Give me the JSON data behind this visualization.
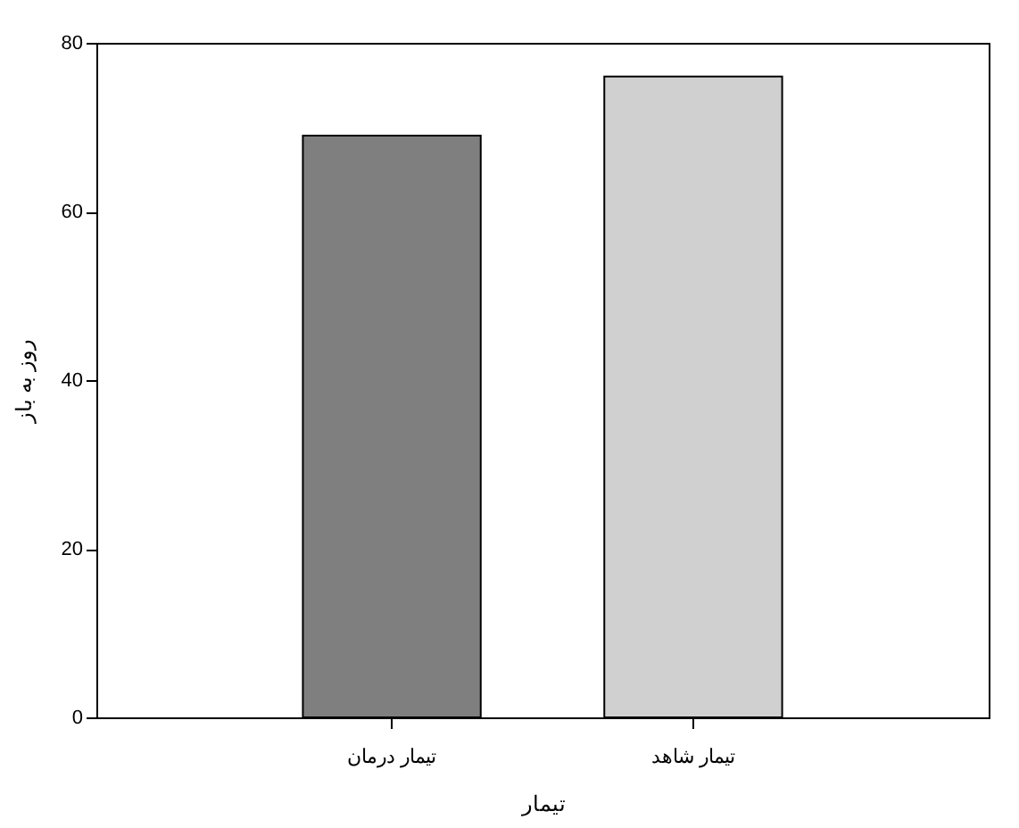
{
  "chart_data": {
    "type": "bar",
    "categories": [
      "تیمار درمان",
      "تیمار شاهد"
    ],
    "values": [
      69,
      76
    ],
    "colors": [
      "#7f7f7f",
      "#d0d0d0"
    ],
    "xlabel": "تیمار",
    "ylabel": "روز به باز",
    "ylim": [
      0,
      80
    ],
    "yticks": [
      0,
      20,
      40,
      60,
      80
    ],
    "grid": false,
    "legend": false
  }
}
